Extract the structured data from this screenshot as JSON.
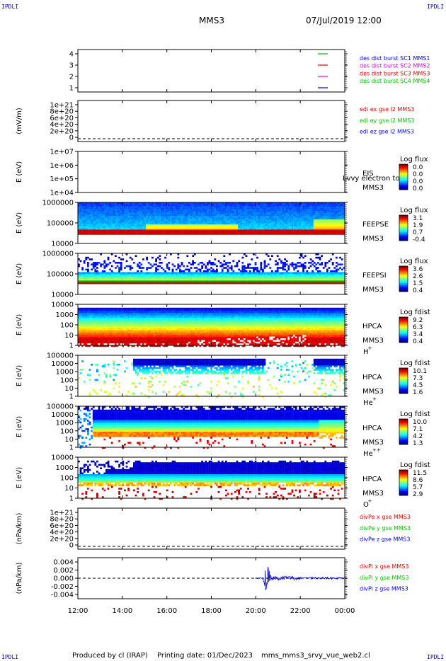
{
  "corner_tag": "IPDLI",
  "header": {
    "spacecraft": "MMS3",
    "datetime": "07/Jul/2019 12:00"
  },
  "footer": {
    "producer": "Produced by cl (IRAP)",
    "printing": "Printing date: 01/Dec/2023",
    "filename": "mms_mms3_srvy_vue_web2.cl"
  },
  "colors": {
    "red": "#e00000",
    "green": "#00c000",
    "blue": "#0000d0",
    "magenta": "#e000e0"
  },
  "chart_data": {
    "type": "multi-panel time series",
    "x_ticks": [
      "12:00",
      "14:00",
      "16:00",
      "18:00",
      "20:00",
      "22:00",
      "00:00"
    ],
    "panels": [
      {
        "kind": "lines",
        "ylabel": "",
        "yticks": [
          "4",
          "3",
          "2",
          "1"
        ],
        "labels": [
          {
            "text": "des dist burst SC1 MMS1",
            "color": "#0000d0"
          },
          {
            "text": "des dist burst SC2 MMS2",
            "color": "#e000e0"
          },
          {
            "text": "des dist burst SC3 MMS3",
            "color": "#e00000"
          },
          {
            "text": "des dist burst SC4 MMS4",
            "color": "#00c000"
          }
        ],
        "marks": [
          {
            "level": 4,
            "color": "#00c000"
          },
          {
            "level": 3,
            "color": "#e00000"
          },
          {
            "level": 2,
            "color": "#e000e0"
          },
          {
            "level": 1,
            "color": "#0000d0"
          }
        ]
      },
      {
        "kind": "lines",
        "ylabel": "(mV/m)",
        "yticks": [
          "1e+21",
          "8e+20",
          "6e+20",
          "4e+20",
          "2e+20",
          "0"
        ],
        "zero_line": true,
        "labels": [
          {
            "text": "edi ex gse l2 MMS3",
            "color": "#e00000"
          },
          {
            "text": "edi ey gse l2 MMS3",
            "color": "#00c000"
          },
          {
            "text": "edi ez gse l2 MMS3",
            "color": "#0000d0"
          }
        ]
      },
      {
        "kind": "spec",
        "ylabel": "E (eV)",
        "yticks": [
          "1e+07",
          "1e+06",
          "1e+05",
          "1e+04"
        ],
        "pattern": "none",
        "inst": [
          "EIS",
          "MMS3"
        ],
        "overlay": "Lvvy electron to",
        "cbar": {
          "title": "Log flux",
          "ticks": [
            "0.0",
            "0.0",
            "0.0",
            "0.0"
          ]
        }
      },
      {
        "kind": "spec",
        "ylabel": "E (eV)",
        "yticks": [
          "1000000",
          "100000",
          "10000"
        ],
        "pattern": "feepse",
        "inst": [
          "FEEPSE",
          "MMS3"
        ],
        "cbar": {
          "title": "Log flux",
          "ticks": [
            "3.1",
            "1.9",
            "0.7",
            "-0.4"
          ]
        }
      },
      {
        "kind": "spec",
        "ylabel": "E (eV)",
        "yticks": [
          "1000000",
          "100000",
          "10000"
        ],
        "pattern": "feepsi",
        "inst": [
          "FEEPSI",
          "MMS3"
        ],
        "cbar": {
          "title": "Log flux",
          "ticks": [
            "3.6",
            "2.6",
            "1.5",
            "0.4"
          ]
        }
      },
      {
        "kind": "spec",
        "ylabel": "E (eV)",
        "yticks": [
          "10000",
          "1000",
          "100",
          "10",
          "1"
        ],
        "pattern": "hplus",
        "inst": [
          "HPCA",
          "MMS3"
        ],
        "species": "H",
        "species_sup": "+",
        "cbar": {
          "title": "Log fdist",
          "ticks": [
            "9.2",
            "6.3",
            "3.4",
            "0.4"
          ]
        }
      },
      {
        "kind": "spec",
        "ylabel": "E (eV)",
        "yticks": [
          "100000",
          "10000",
          "1000",
          "100",
          "10",
          "1"
        ],
        "pattern": "heplus",
        "inst": [
          "HPCA",
          "MMS3"
        ],
        "species": "He",
        "species_sup": "+",
        "cbar": {
          "title": "Log fdist",
          "ticks": [
            "10.1",
            "7.3",
            "4.5",
            "1.6"
          ]
        }
      },
      {
        "kind": "spec",
        "ylabel": "E (eV)",
        "yticks": [
          "100000",
          "10000",
          "1000",
          "100",
          "10",
          "1"
        ],
        "pattern": "hepp",
        "inst": [
          "HPCA",
          "MMS3"
        ],
        "species": "He",
        "species_sup": "++",
        "cbar": {
          "title": "Log fdist",
          "ticks": [
            "10.0",
            "7.1",
            "4.2",
            "1.3"
          ]
        }
      },
      {
        "kind": "spec",
        "ylabel": "E (eV)",
        "yticks": [
          "10000",
          "1000",
          "100",
          "10",
          "1"
        ],
        "pattern": "oplus",
        "inst": [
          "HPCA",
          "MMS3"
        ],
        "species": "O",
        "species_sup": "+",
        "cbar": {
          "title": "Log fdist",
          "ticks": [
            "11.5",
            "8.6",
            "5.7",
            "2.9"
          ]
        }
      },
      {
        "kind": "lines",
        "ylabel": "(nPa/km)",
        "yticks": [
          "1e+21",
          "8e+20",
          "6e+20",
          "4e+20",
          "2e+20",
          "0"
        ],
        "zero_line": true,
        "labels": [
          {
            "text": "divPe x gse MMS3",
            "color": "#e00000"
          },
          {
            "text": "divPe y gse MMS3",
            "color": "#00c000"
          },
          {
            "text": "divPe z gse MMS3",
            "color": "#0000d0"
          }
        ]
      },
      {
        "kind": "lines",
        "ylabel": "(nPa/km)",
        "yticks": [
          "0.004",
          "0.002",
          "0.000",
          "-0.002",
          "-0.004"
        ],
        "zero_line": true,
        "signal": true,
        "labels": [
          {
            "text": "divPi x gse MMS3",
            "color": "#e00000"
          },
          {
            "text": "divPi y gse MMS3",
            "color": "#00c000"
          },
          {
            "text": "divPi z gse MMS3",
            "color": "#0000d0"
          }
        ]
      }
    ]
  }
}
